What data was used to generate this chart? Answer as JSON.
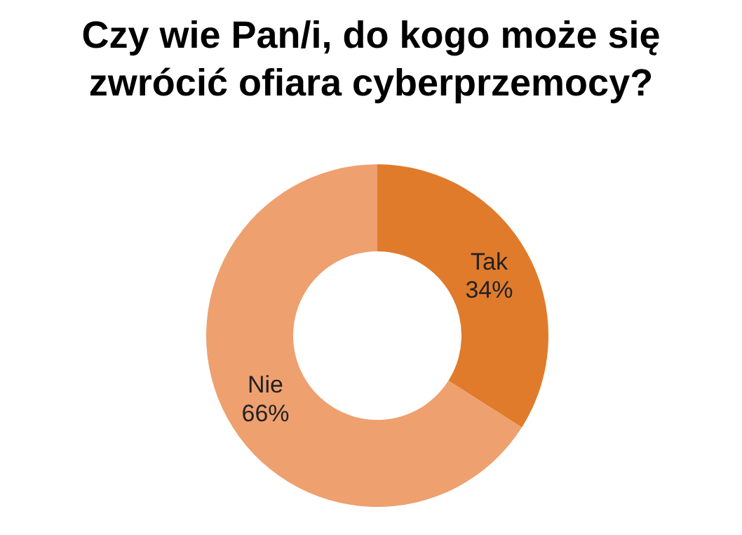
{
  "chart_data": {
    "type": "donut",
    "title": "Czy wie Pan/i,  do kogo może się zwrócić ofiara cyberprzemocy?",
    "categories": [
      "Tak",
      "Nie"
    ],
    "values": [
      34,
      66
    ],
    "value_labels": [
      "34%",
      "66%"
    ],
    "colors": [
      "#e07b2b",
      "#eea06f"
    ]
  }
}
